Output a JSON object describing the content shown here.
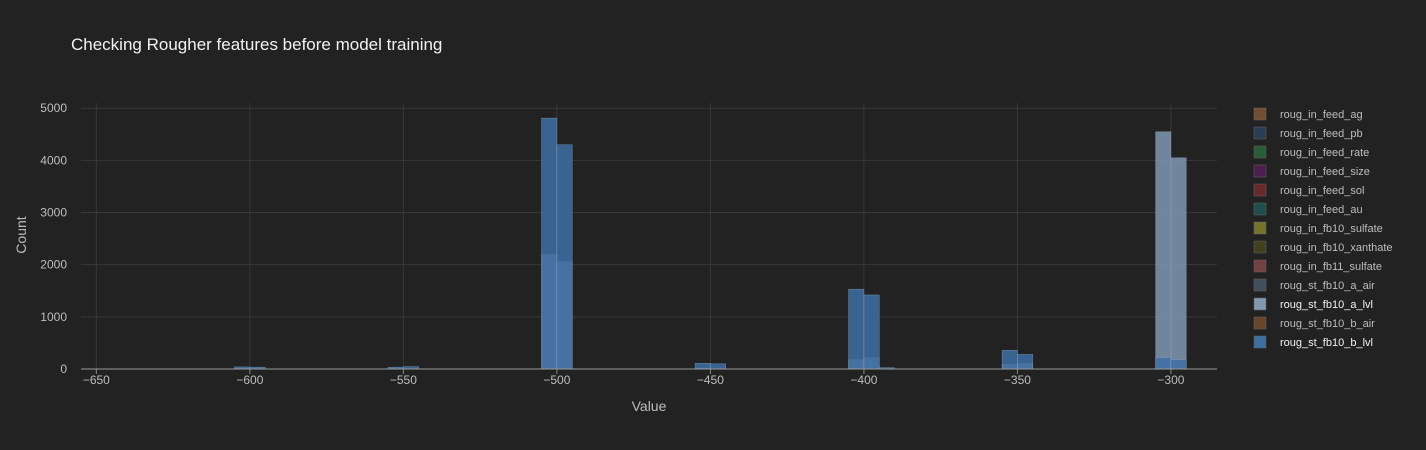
{
  "chart_data": {
    "type": "bar",
    "subtype": "overlaid-histogram",
    "title": "Checking Rougher features before model training",
    "xlabel": "Value",
    "ylabel": "Count",
    "xlim": [
      -655,
      -285
    ],
    "ylim": [
      0,
      5100
    ],
    "x_ticks": [
      -650,
      -600,
      -550,
      -500,
      -450,
      -400,
      -350,
      -300
    ],
    "y_ticks": [
      0,
      1000,
      2000,
      3000,
      4000,
      5000
    ],
    "grid": true,
    "legend_position": "right",
    "bin_width": 5,
    "series": [
      {
        "name": "roug_in_feed_ag",
        "color": "#8a5a35",
        "visible": false
      },
      {
        "name": "roug_in_feed_pb",
        "color": "#2c4560",
        "visible": false
      },
      {
        "name": "roug_in_feed_rate",
        "color": "#2c6a3c",
        "visible": false
      },
      {
        "name": "roug_in_feed_size",
        "color": "#5a1f5a",
        "visible": false
      },
      {
        "name": "roug_in_feed_sol",
        "color": "#7a2e2e",
        "visible": false
      },
      {
        "name": "roug_in_feed_au",
        "color": "#1e5a5a",
        "visible": false
      },
      {
        "name": "roug_in_fb10_sulfate",
        "color": "#8a8a2e",
        "visible": false
      },
      {
        "name": "roug_in_fb10_xanthate",
        "color": "#4a4a20",
        "visible": false
      },
      {
        "name": "roug_in_fb11_sulfate",
        "color": "#8a4a4a",
        "visible": false
      },
      {
        "name": "roug_st_fb10_a_air",
        "color": "#4a5a6a",
        "visible": false
      },
      {
        "name": "roug_st_fb10_a_lvl",
        "color": "#7f98b3",
        "visible": true,
        "bins": [
          {
            "x0": -605,
            "x1": -600,
            "y": 15
          },
          {
            "x0": -555,
            "x1": -550,
            "y": 10
          },
          {
            "x0": -505,
            "x1": -500,
            "y": 2200
          },
          {
            "x0": -500,
            "x1": -495,
            "y": 2060
          },
          {
            "x0": -455,
            "x1": -450,
            "y": 20
          },
          {
            "x0": -405,
            "x1": -400,
            "y": 180
          },
          {
            "x0": -400,
            "x1": -395,
            "y": 220
          },
          {
            "x0": -355,
            "x1": -350,
            "y": 90
          },
          {
            "x0": -350,
            "x1": -345,
            "y": 110
          },
          {
            "x0": -305,
            "x1": -300,
            "y": 4550
          },
          {
            "x0": -300,
            "x1": -295,
            "y": 4050
          }
        ]
      },
      {
        "name": "roug_st_fb10_b_air",
        "color": "#7a5030",
        "visible": false
      },
      {
        "name": "roug_st_fb10_b_lvl",
        "color": "#3d6fa3",
        "visible": true,
        "bins": [
          {
            "x0": -620,
            "x1": -615,
            "y": 5
          },
          {
            "x0": -605,
            "x1": -600,
            "y": 40
          },
          {
            "x0": -600,
            "x1": -595,
            "y": 35
          },
          {
            "x0": -555,
            "x1": -550,
            "y": 35
          },
          {
            "x0": -550,
            "x1": -545,
            "y": 45
          },
          {
            "x0": -505,
            "x1": -500,
            "y": 4810
          },
          {
            "x0": -500,
            "x1": -495,
            "y": 4300
          },
          {
            "x0": -455,
            "x1": -450,
            "y": 110
          },
          {
            "x0": -450,
            "x1": -445,
            "y": 100
          },
          {
            "x0": -405,
            "x1": -400,
            "y": 1530
          },
          {
            "x0": -400,
            "x1": -395,
            "y": 1420
          },
          {
            "x0": -395,
            "x1": -390,
            "y": 25
          },
          {
            "x0": -355,
            "x1": -350,
            "y": 360
          },
          {
            "x0": -350,
            "x1": -345,
            "y": 280
          },
          {
            "x0": -305,
            "x1": -300,
            "y": 220
          },
          {
            "x0": -300,
            "x1": -295,
            "y": 180
          }
        ]
      }
    ]
  }
}
